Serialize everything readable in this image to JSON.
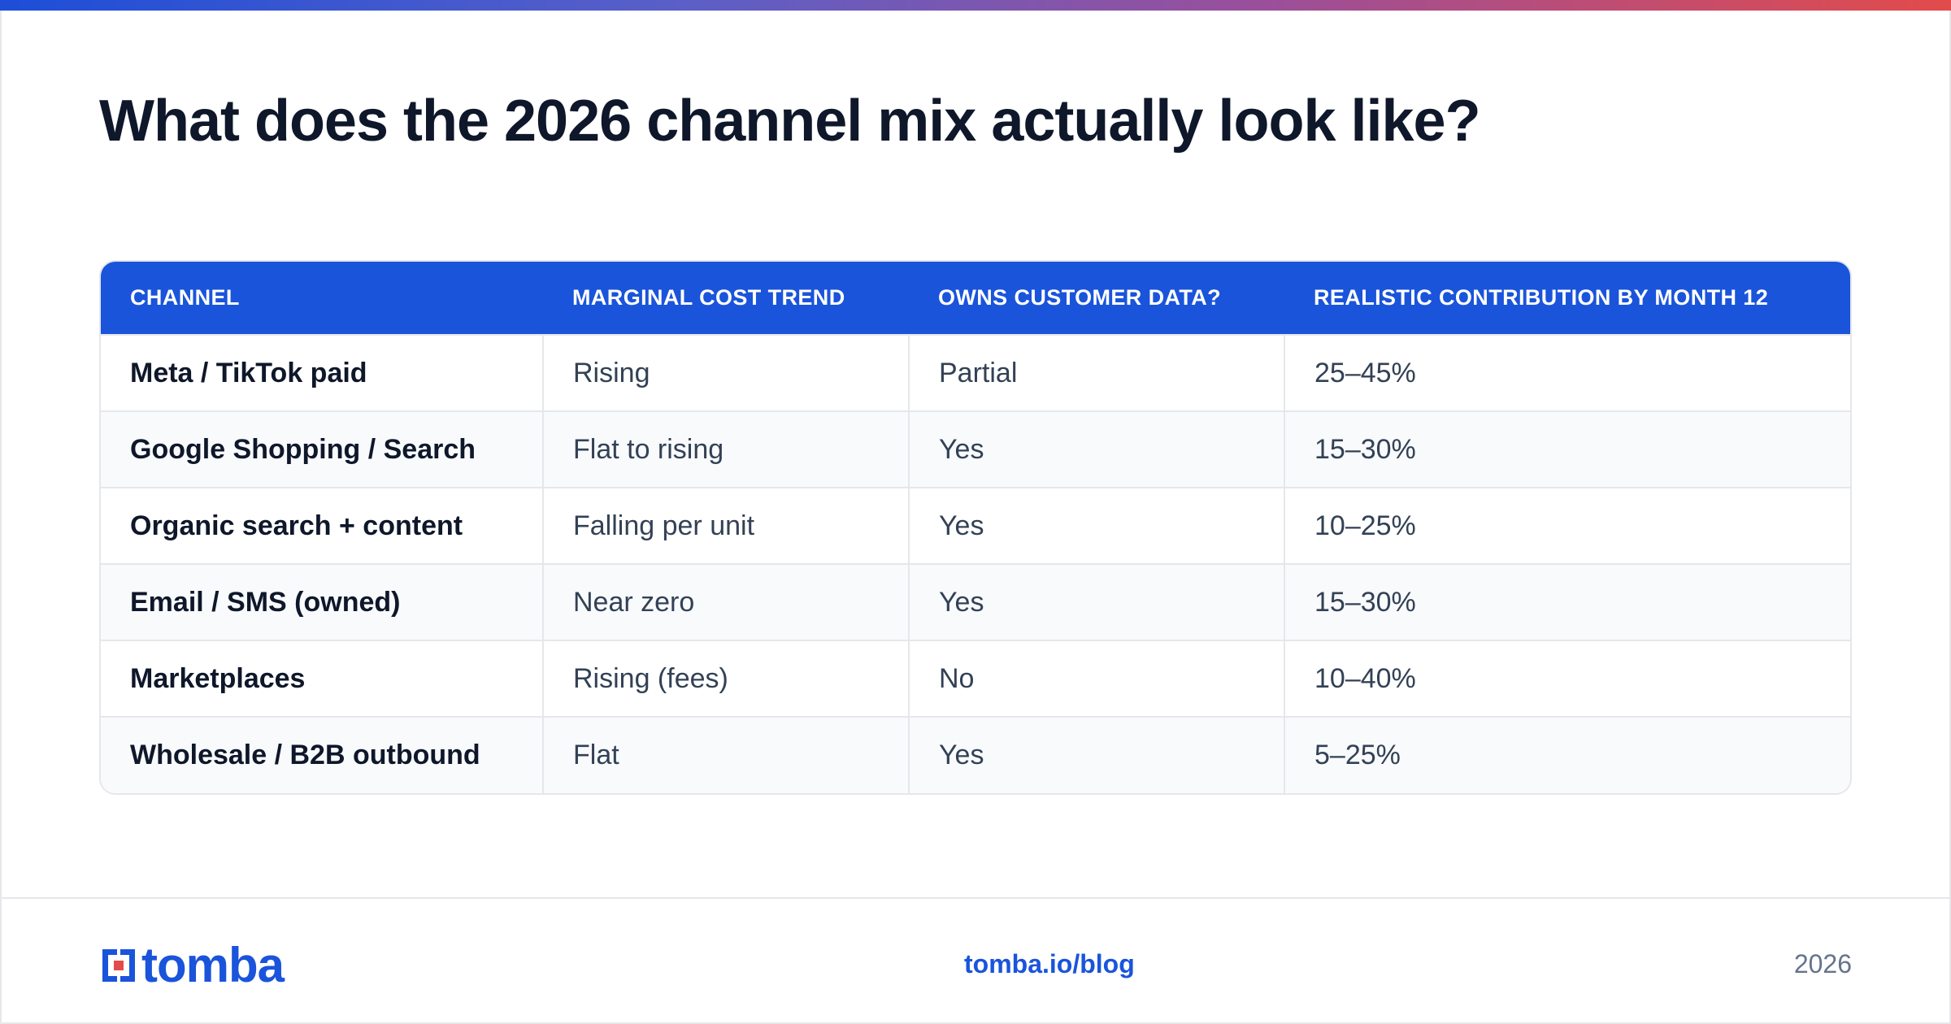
{
  "title": "What does the 2026 channel mix actually look like?",
  "table": {
    "headers": [
      "CHANNEL",
      "MARGINAL COST TREND",
      "OWNS CUSTOMER DATA?",
      "REALISTIC CONTRIBUTION BY MONTH 12"
    ],
    "rows": [
      [
        "Meta / TikTok paid",
        "Rising",
        "Partial",
        "25–45%"
      ],
      [
        "Google Shopping / Search",
        "Flat to rising",
        "Yes",
        "15–30%"
      ],
      [
        "Organic search + content",
        "Falling per unit",
        "Yes",
        "10–25%"
      ],
      [
        "Email / SMS (owned)",
        "Near zero",
        "Yes",
        "15–30%"
      ],
      [
        "Marketplaces",
        "Rising (fees)",
        "No",
        "10–40%"
      ],
      [
        "Wholesale / B2B outbound",
        "Flat",
        "Yes",
        "5–25%"
      ]
    ]
  },
  "footer": {
    "logo_text": "tomba",
    "link": "tomba.io/blog",
    "year": "2026"
  },
  "colors": {
    "brand_blue": "#1a54db",
    "accent_red": "#e24b4b",
    "title_text": "#0f172a",
    "body_text": "#334155",
    "muted_text": "#64748b"
  }
}
